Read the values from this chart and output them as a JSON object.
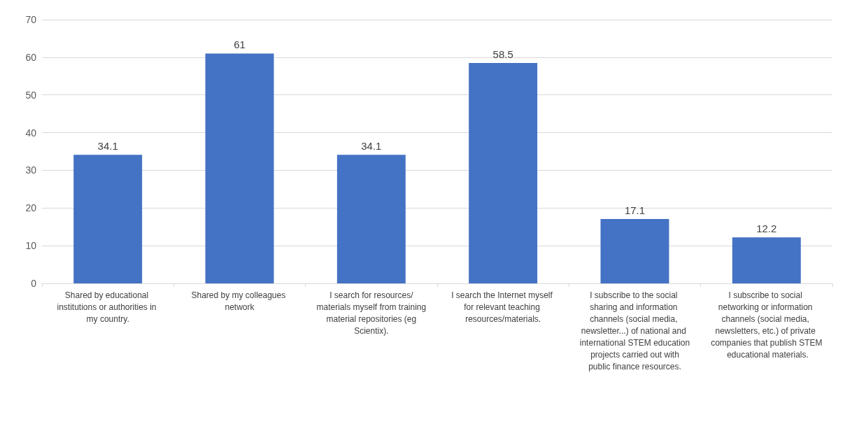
{
  "chart_data": {
    "type": "bar",
    "categories": [
      "Shared by educational institutions or authorities in my country.",
      "Shared by my colleagues network",
      "I search for resources/materials myself from training material repositories (eg Scientix).",
      "I search the Internet myself for relevant teaching resources/materials.",
      "I subscribe to the social sharing and information channels (social media, newsletter...) of national and international STEM education projects carried out with public finance resources.",
      "I subscribe to social networking or information channels (social media, newsletters, etc.) of private companies that publish STEM educational materials."
    ],
    "values": [
      34.1,
      61,
      34.1,
      58.5,
      17.1,
      12.2
    ],
    "color": "#4472c4",
    "ylim": [
      0,
      70
    ],
    "yticks": [
      0,
      10,
      20,
      30,
      40,
      50,
      60,
      70
    ],
    "grid": "y",
    "data_labels": true
  }
}
